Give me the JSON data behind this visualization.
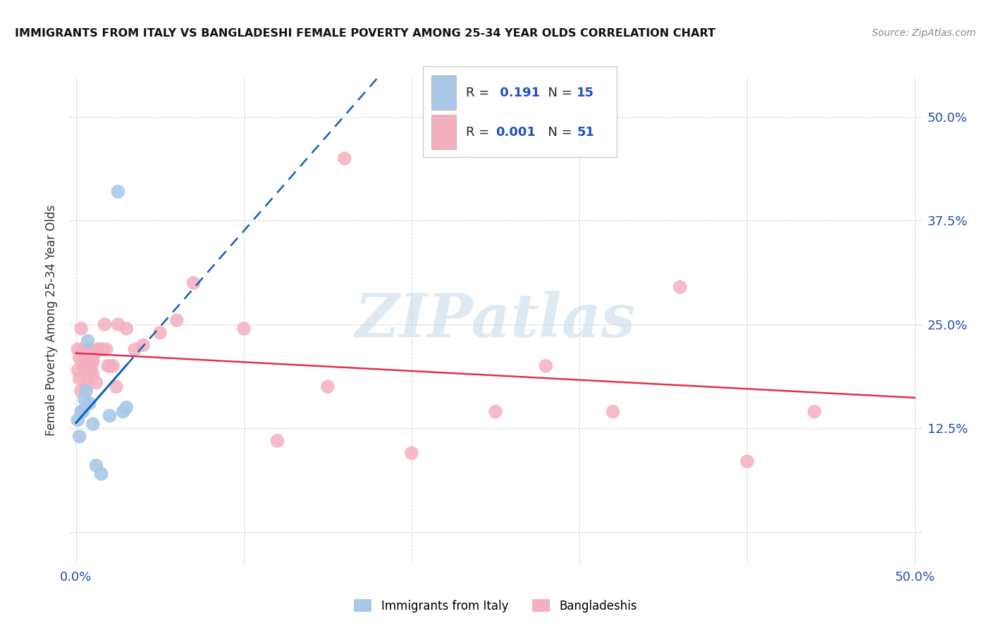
{
  "title": "IMMIGRANTS FROM ITALY VS BANGLADESHI FEMALE POVERTY AMONG 25-34 YEAR OLDS CORRELATION CHART",
  "source": "Source: ZipAtlas.com",
  "ylabel": "Female Poverty Among 25-34 Year Olds",
  "xlim": [
    -0.004,
    0.504
  ],
  "ylim": [
    -0.04,
    0.55
  ],
  "xtick_positions": [
    0.0,
    0.1,
    0.2,
    0.3,
    0.4,
    0.5
  ],
  "xtick_labels": [
    "0.0%",
    "",
    "",
    "",
    "",
    "50.0%"
  ],
  "ytick_positions": [
    0.0,
    0.125,
    0.25,
    0.375,
    0.5
  ],
  "ytick_labels": [
    "",
    "12.5%",
    "25.0%",
    "37.5%",
    "50.0%"
  ],
  "italy_R": 0.191,
  "italy_N": 15,
  "bangla_R": 0.001,
  "bangla_N": 51,
  "italy_color": "#a8c8e8",
  "bangla_color": "#f5b0c0",
  "italy_line_color": "#1060b8",
  "bangla_line_color": "#e03050",
  "grid_color": "#cccccc",
  "watermark_text": "ZIPatlas",
  "italy_x": [
    0.001,
    0.002,
    0.003,
    0.004,
    0.005,
    0.006,
    0.007,
    0.008,
    0.01,
    0.012,
    0.015,
    0.02,
    0.025,
    0.028,
    0.03
  ],
  "italy_y": [
    0.135,
    0.115,
    0.145,
    0.145,
    0.16,
    0.17,
    0.23,
    0.155,
    0.13,
    0.08,
    0.07,
    0.14,
    0.41,
    0.145,
    0.15
  ],
  "bangla_x": [
    0.001,
    0.001,
    0.002,
    0.002,
    0.003,
    0.003,
    0.004,
    0.004,
    0.005,
    0.005,
    0.006,
    0.006,
    0.006,
    0.007,
    0.007,
    0.008,
    0.008,
    0.009,
    0.009,
    0.01,
    0.01,
    0.011,
    0.012,
    0.013,
    0.014,
    0.015,
    0.016,
    0.017,
    0.018,
    0.019,
    0.02,
    0.022,
    0.024,
    0.025,
    0.03,
    0.035,
    0.04,
    0.05,
    0.06,
    0.07,
    0.1,
    0.12,
    0.15,
    0.16,
    0.2,
    0.25,
    0.28,
    0.32,
    0.36,
    0.4,
    0.44
  ],
  "bangla_y": [
    0.195,
    0.22,
    0.185,
    0.21,
    0.17,
    0.245,
    0.2,
    0.22,
    0.19,
    0.215,
    0.175,
    0.205,
    0.22,
    0.22,
    0.18,
    0.215,
    0.22,
    0.2,
    0.195,
    0.205,
    0.19,
    0.215,
    0.18,
    0.22,
    0.22,
    0.22,
    0.22,
    0.25,
    0.22,
    0.2,
    0.2,
    0.2,
    0.175,
    0.25,
    0.245,
    0.22,
    0.225,
    0.24,
    0.255,
    0.3,
    0.245,
    0.11,
    0.175,
    0.45,
    0.095,
    0.145,
    0.2,
    0.145,
    0.295,
    0.085,
    0.145
  ]
}
